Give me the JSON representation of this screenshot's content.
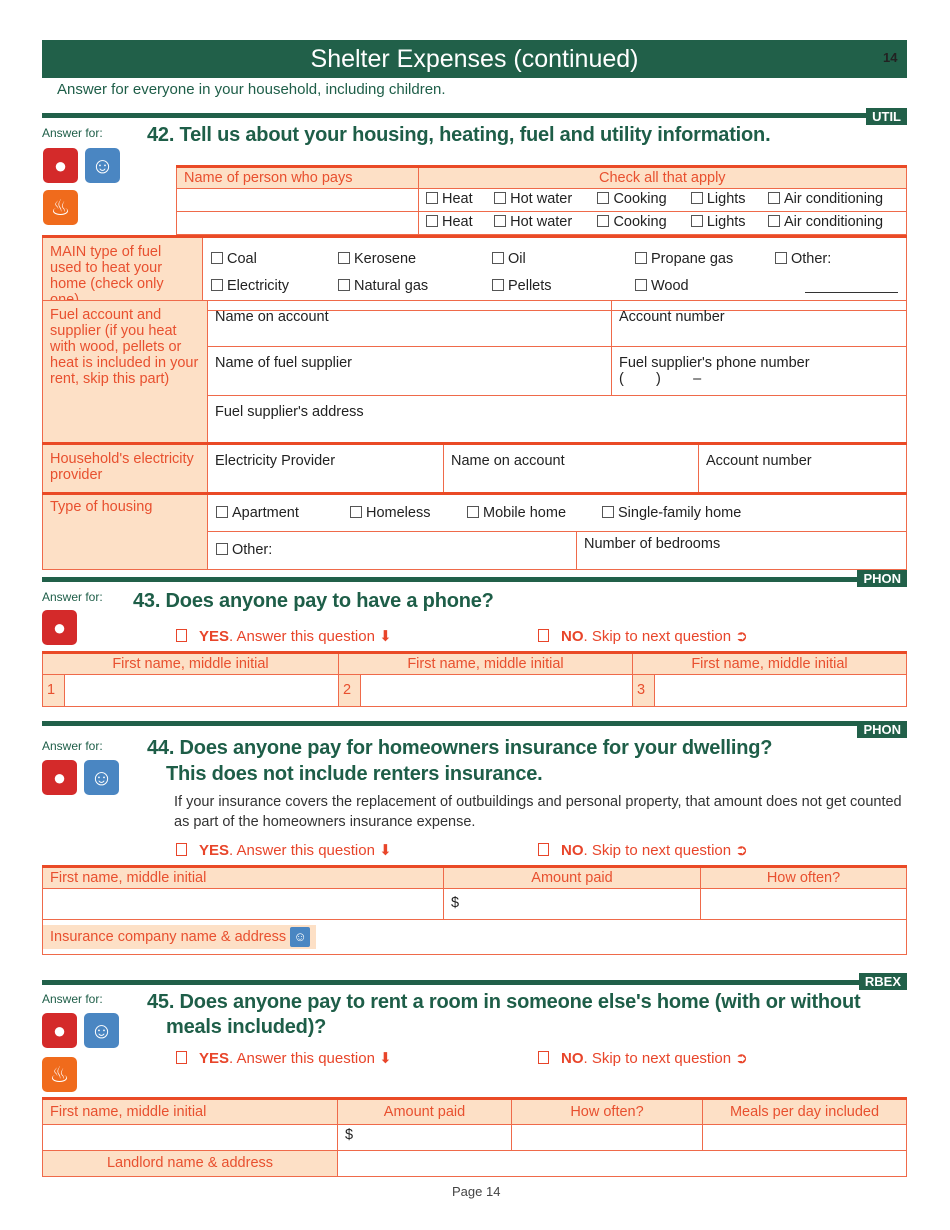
{
  "header": {
    "title": "Shelter Expenses (continued)",
    "page_number": "14",
    "subtitle": "Answer for everyone in your household, including children."
  },
  "answer_for": "Answer for:",
  "yes_label": "YES",
  "yes_text": ". Answer this question",
  "no_label": "NO",
  "no_text": ". Skip to next question",
  "q42": {
    "tag": "UTIL",
    "title": "42. Tell us about your housing, heating, fuel and utility information.",
    "name_header": "Name of person who pays",
    "check_header": "Check all that apply",
    "utilities": [
      "Heat",
      "Hot water",
      "Cooking",
      "Lights",
      "Air conditioning"
    ],
    "fuel_label": "MAIN type of fuel used to heat your home (check only one)",
    "fuels_row1": [
      "Coal",
      "Kerosene",
      "Oil",
      "Propane gas",
      "Other:"
    ],
    "fuels_row2": [
      "Electricity",
      "Natural gas",
      "Pellets",
      "Wood"
    ],
    "account_label": "Fuel account and supplier (if you heat with wood, pellets or heat is included in your rent, skip this part)",
    "name_on_account": "Name on account",
    "account_number": "Account number",
    "supplier_name": "Name of fuel supplier",
    "supplier_phone": "Fuel supplier's phone number",
    "phone_mask": "(        )        –",
    "supplier_address": "Fuel supplier's address",
    "electricity_label": "Household's electricity provider",
    "electricity_provider": "Electricity Provider",
    "housing_label": "Type of housing",
    "housing": [
      "Apartment",
      "Homeless",
      "Mobile home",
      "Single-family home"
    ],
    "housing_other": "Other:",
    "bedrooms": "Number of bedrooms"
  },
  "q43": {
    "tag": "PHON",
    "title": "43. Does anyone pay to have a phone?",
    "col": "First name, middle initial",
    "nums": [
      "1",
      "2",
      "3"
    ]
  },
  "q44": {
    "tag": "PHON",
    "title": "44. Does anyone pay for homeowners insurance for your dwelling?",
    "title2": "This does not include renters insurance.",
    "note": "If your insurance covers the replacement of outbuildings and personal property, that amount does not get counted as part of the homeowners insurance expense.",
    "cols": [
      "First name, middle initial",
      "Amount paid",
      "How often?"
    ],
    "dollar": "$",
    "insurance": "Insurance company name & address"
  },
  "q45": {
    "tag": "RBEX",
    "title": "45. Does anyone pay to rent a room in someone else's home (with or without",
    "title2": "meals included)?",
    "cols": [
      "First name, middle initial",
      "Amount paid",
      "How often?",
      "Meals per day included"
    ],
    "dollar": "$",
    "landlord": "Landlord name & address"
  },
  "footer": {
    "page": "Page 14"
  }
}
